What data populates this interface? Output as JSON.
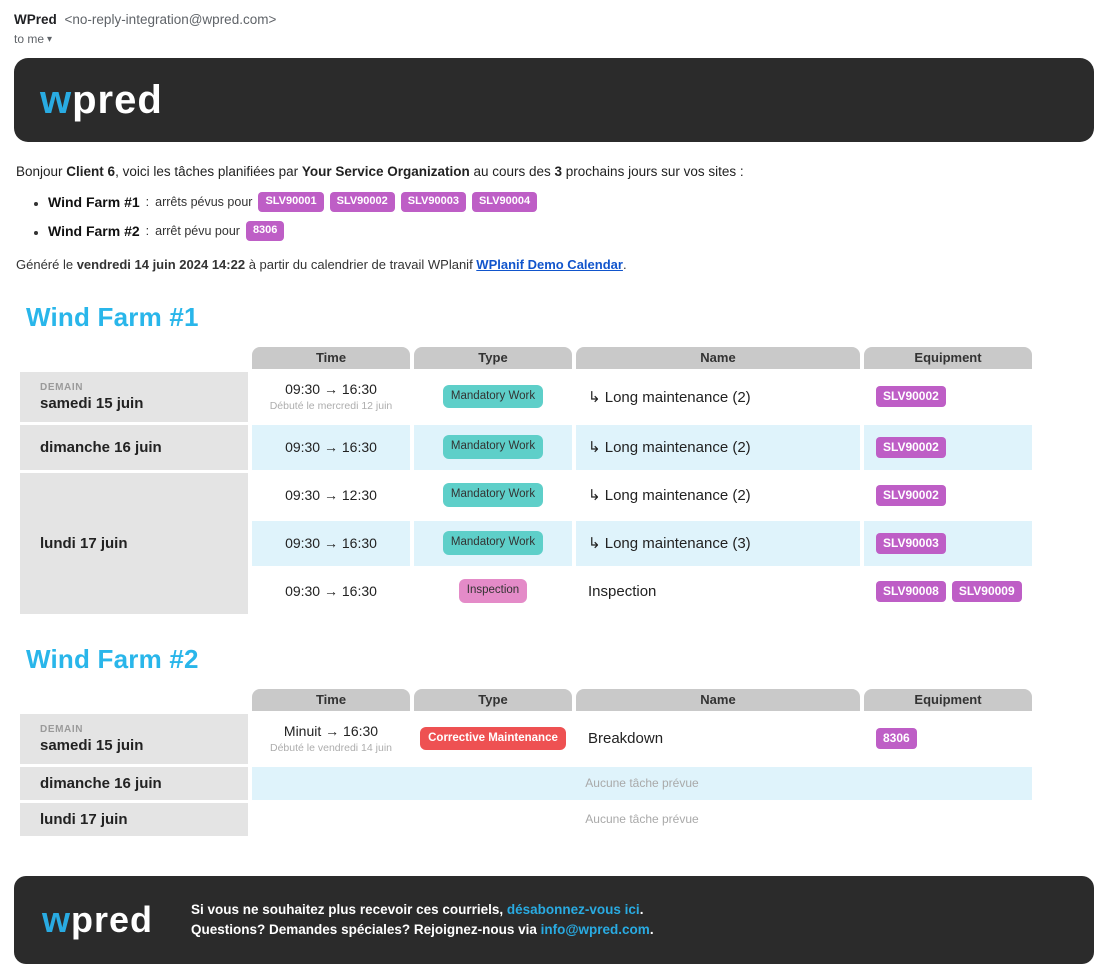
{
  "email_header": {
    "sender_name": "WPred",
    "sender_email": "<no-reply-integration@wpred.com>",
    "recipient": "to me",
    "caret_icon": "▾"
  },
  "brand": {
    "logo_w": "w",
    "logo_rest": "pred"
  },
  "colors": {
    "accent_cyan": "#29abe2",
    "heading_cyan": "#29b6ea",
    "dark_bg": "#2b2b2b",
    "link_blue": "#1155cc",
    "header_gray": "#c9c9c9",
    "date_cell_gray": "#e4e4e4",
    "row_tint_blue": "#dff3fb",
    "badge_purple": "#be5ec6",
    "type_mandatory_bg": "#5ecfc9",
    "type_inspection_bg": "#e48bc8",
    "type_corrective_bg": "#ee5152"
  },
  "intro": {
    "pre": "Bonjour ",
    "client": "Client 6",
    "mid1": ", voici les tâches planifiées par ",
    "org": "Your Service Organization",
    "mid2": " au cours des ",
    "days": "3",
    "post": " prochains jours sur vos sites :"
  },
  "site_summaries": [
    {
      "site": "Wind Farm #1",
      "sep": ":",
      "label": "arrêts pévus pour",
      "badges": [
        "SLV90001",
        "SLV90002",
        "SLV90003",
        "SLV90004"
      ]
    },
    {
      "site": "Wind Farm #2",
      "sep": ":",
      "label": "arrêt pévu pour",
      "badges": [
        "8306"
      ]
    }
  ],
  "generated": {
    "pre": "Généré le ",
    "datetime": "vendredi 14 juin 2024 14:22",
    "mid": " à partir du calendrier de travail WPlanif ",
    "link": "WPlanif Demo Calendar",
    "post": "."
  },
  "sections": [
    {
      "title": "Wind Farm #1",
      "columns": [
        "Time",
        "Type",
        "Name",
        "Equipment"
      ],
      "groups": [
        {
          "demain": "DEMAIN",
          "day": "samedi 15 juin",
          "rows": [
            {
              "time": "09:30 → 16:30",
              "note": "Débuté le mercredi 12 juin",
              "type": "Mandatory Work",
              "type_key": "mandatory",
              "name": "↳ Long maintenance (2)",
              "equipment": [
                "SLV90002"
              ],
              "tint": false,
              "tall": true
            }
          ]
        },
        {
          "day": "dimanche 16 juin",
          "rows": [
            {
              "time": "09:30 → 16:30",
              "type": "Mandatory Work",
              "type_key": "mandatory",
              "name": "↳ Long maintenance (2)",
              "equipment": [
                "SLV90002"
              ],
              "tint": true
            }
          ]
        },
        {
          "day": "lundi 17 juin",
          "rows": [
            {
              "time": "09:30 → 12:30",
              "type": "Mandatory Work",
              "type_key": "mandatory",
              "name": "↳ Long maintenance (2)",
              "equipment": [
                "SLV90002"
              ],
              "tint": false
            },
            {
              "time": "09:30 → 16:30",
              "type": "Mandatory Work",
              "type_key": "mandatory",
              "name": "↳ Long maintenance (3)",
              "equipment": [
                "SLV90003"
              ],
              "tint": true
            },
            {
              "time": "09:30 → 16:30",
              "type": "Inspection",
              "type_key": "inspection",
              "name": "Inspection",
              "equipment": [
                "SLV90008",
                "SLV90009"
              ],
              "tint": false
            }
          ]
        }
      ]
    },
    {
      "title": "Wind Farm #2",
      "columns": [
        "Time",
        "Type",
        "Name",
        "Equipment"
      ],
      "groups": [
        {
          "demain": "DEMAIN",
          "day": "samedi 15 juin",
          "rows": [
            {
              "time": "Minuit → 16:30",
              "note": "Débuté le vendredi 14 juin",
              "type": "Corrective Maintenance",
              "type_key": "corrective",
              "name": "Breakdown",
              "equipment": [
                "8306"
              ],
              "tint": false,
              "tall": true
            }
          ]
        },
        {
          "day": "dimanche 16 juin",
          "rows": [
            {
              "empty": "Aucune tâche prévue",
              "tint": true
            }
          ]
        },
        {
          "day": "lundi 17 juin",
          "rows": [
            {
              "empty": "Aucune tâche prévue",
              "tint": false
            }
          ]
        }
      ]
    }
  ],
  "footer": {
    "line1_pre": "Si vous ne souhaitez plus recevoir ces courriels, ",
    "line1_link": "désabonnez-vous ici",
    "line1_post": ".",
    "line2_pre": "Questions? Demandes spéciales? Rejoignez-nous via ",
    "line2_link": "info@wpred.com",
    "line2_post": "."
  }
}
